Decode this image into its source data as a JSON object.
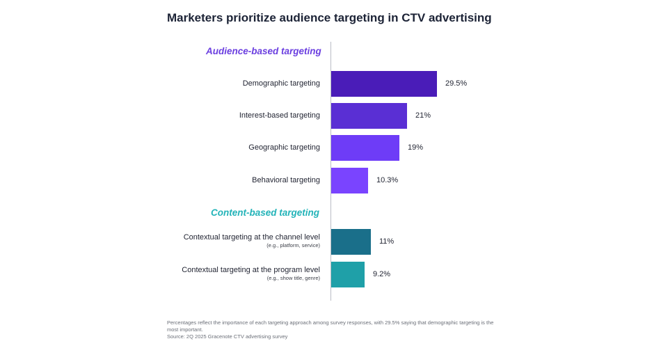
{
  "chart_data": {
    "type": "bar",
    "orientation": "horizontal",
    "title": "Marketers prioritize audience targeting in CTV advertising",
    "groups": [
      {
        "name": "Audience-based targeting",
        "color": "#6b3fe0",
        "rows": [
          {
            "label": "Demographic targeting",
            "sublabel": "",
            "value": 29.5,
            "value_label": "29.5%",
            "color": "#4a1cb8"
          },
          {
            "label": "Interest-based targeting",
            "sublabel": "",
            "value": 21,
            "value_label": "21%",
            "color": "#5a2fd4"
          },
          {
            "label": "Geographic targeting",
            "sublabel": "",
            "value": 19,
            "value_label": "19%",
            "color": "#6e3cf7"
          },
          {
            "label": "Behavioral targeting",
            "sublabel": "",
            "value": 10.3,
            "value_label": "10.3%",
            "color": "#7a44ff"
          }
        ]
      },
      {
        "name": "Content-based targeting",
        "color": "#22b3b8",
        "rows": [
          {
            "label": "Contextual targeting at the channel level",
            "sublabel": "(e.g., platform, service)",
            "value": 11,
            "value_label": "11%",
            "color": "#1a6f8a"
          },
          {
            "label": "Contextual targeting at the program level",
            "sublabel": "(e.g., show title, genre)",
            "value": 9.2,
            "value_label": "9.2%",
            "color": "#1fa0a8"
          }
        ]
      }
    ],
    "xlim": [
      0,
      30
    ],
    "grid": false,
    "legend": "none"
  },
  "footnote": {
    "line1": "Percentages reflect the importance of each targeting approach among survey responses, with 29.5% saying that demographic targeting is the most important.",
    "line2": "Source: 2Q 2025 Gracenote CTV advertising survey"
  }
}
